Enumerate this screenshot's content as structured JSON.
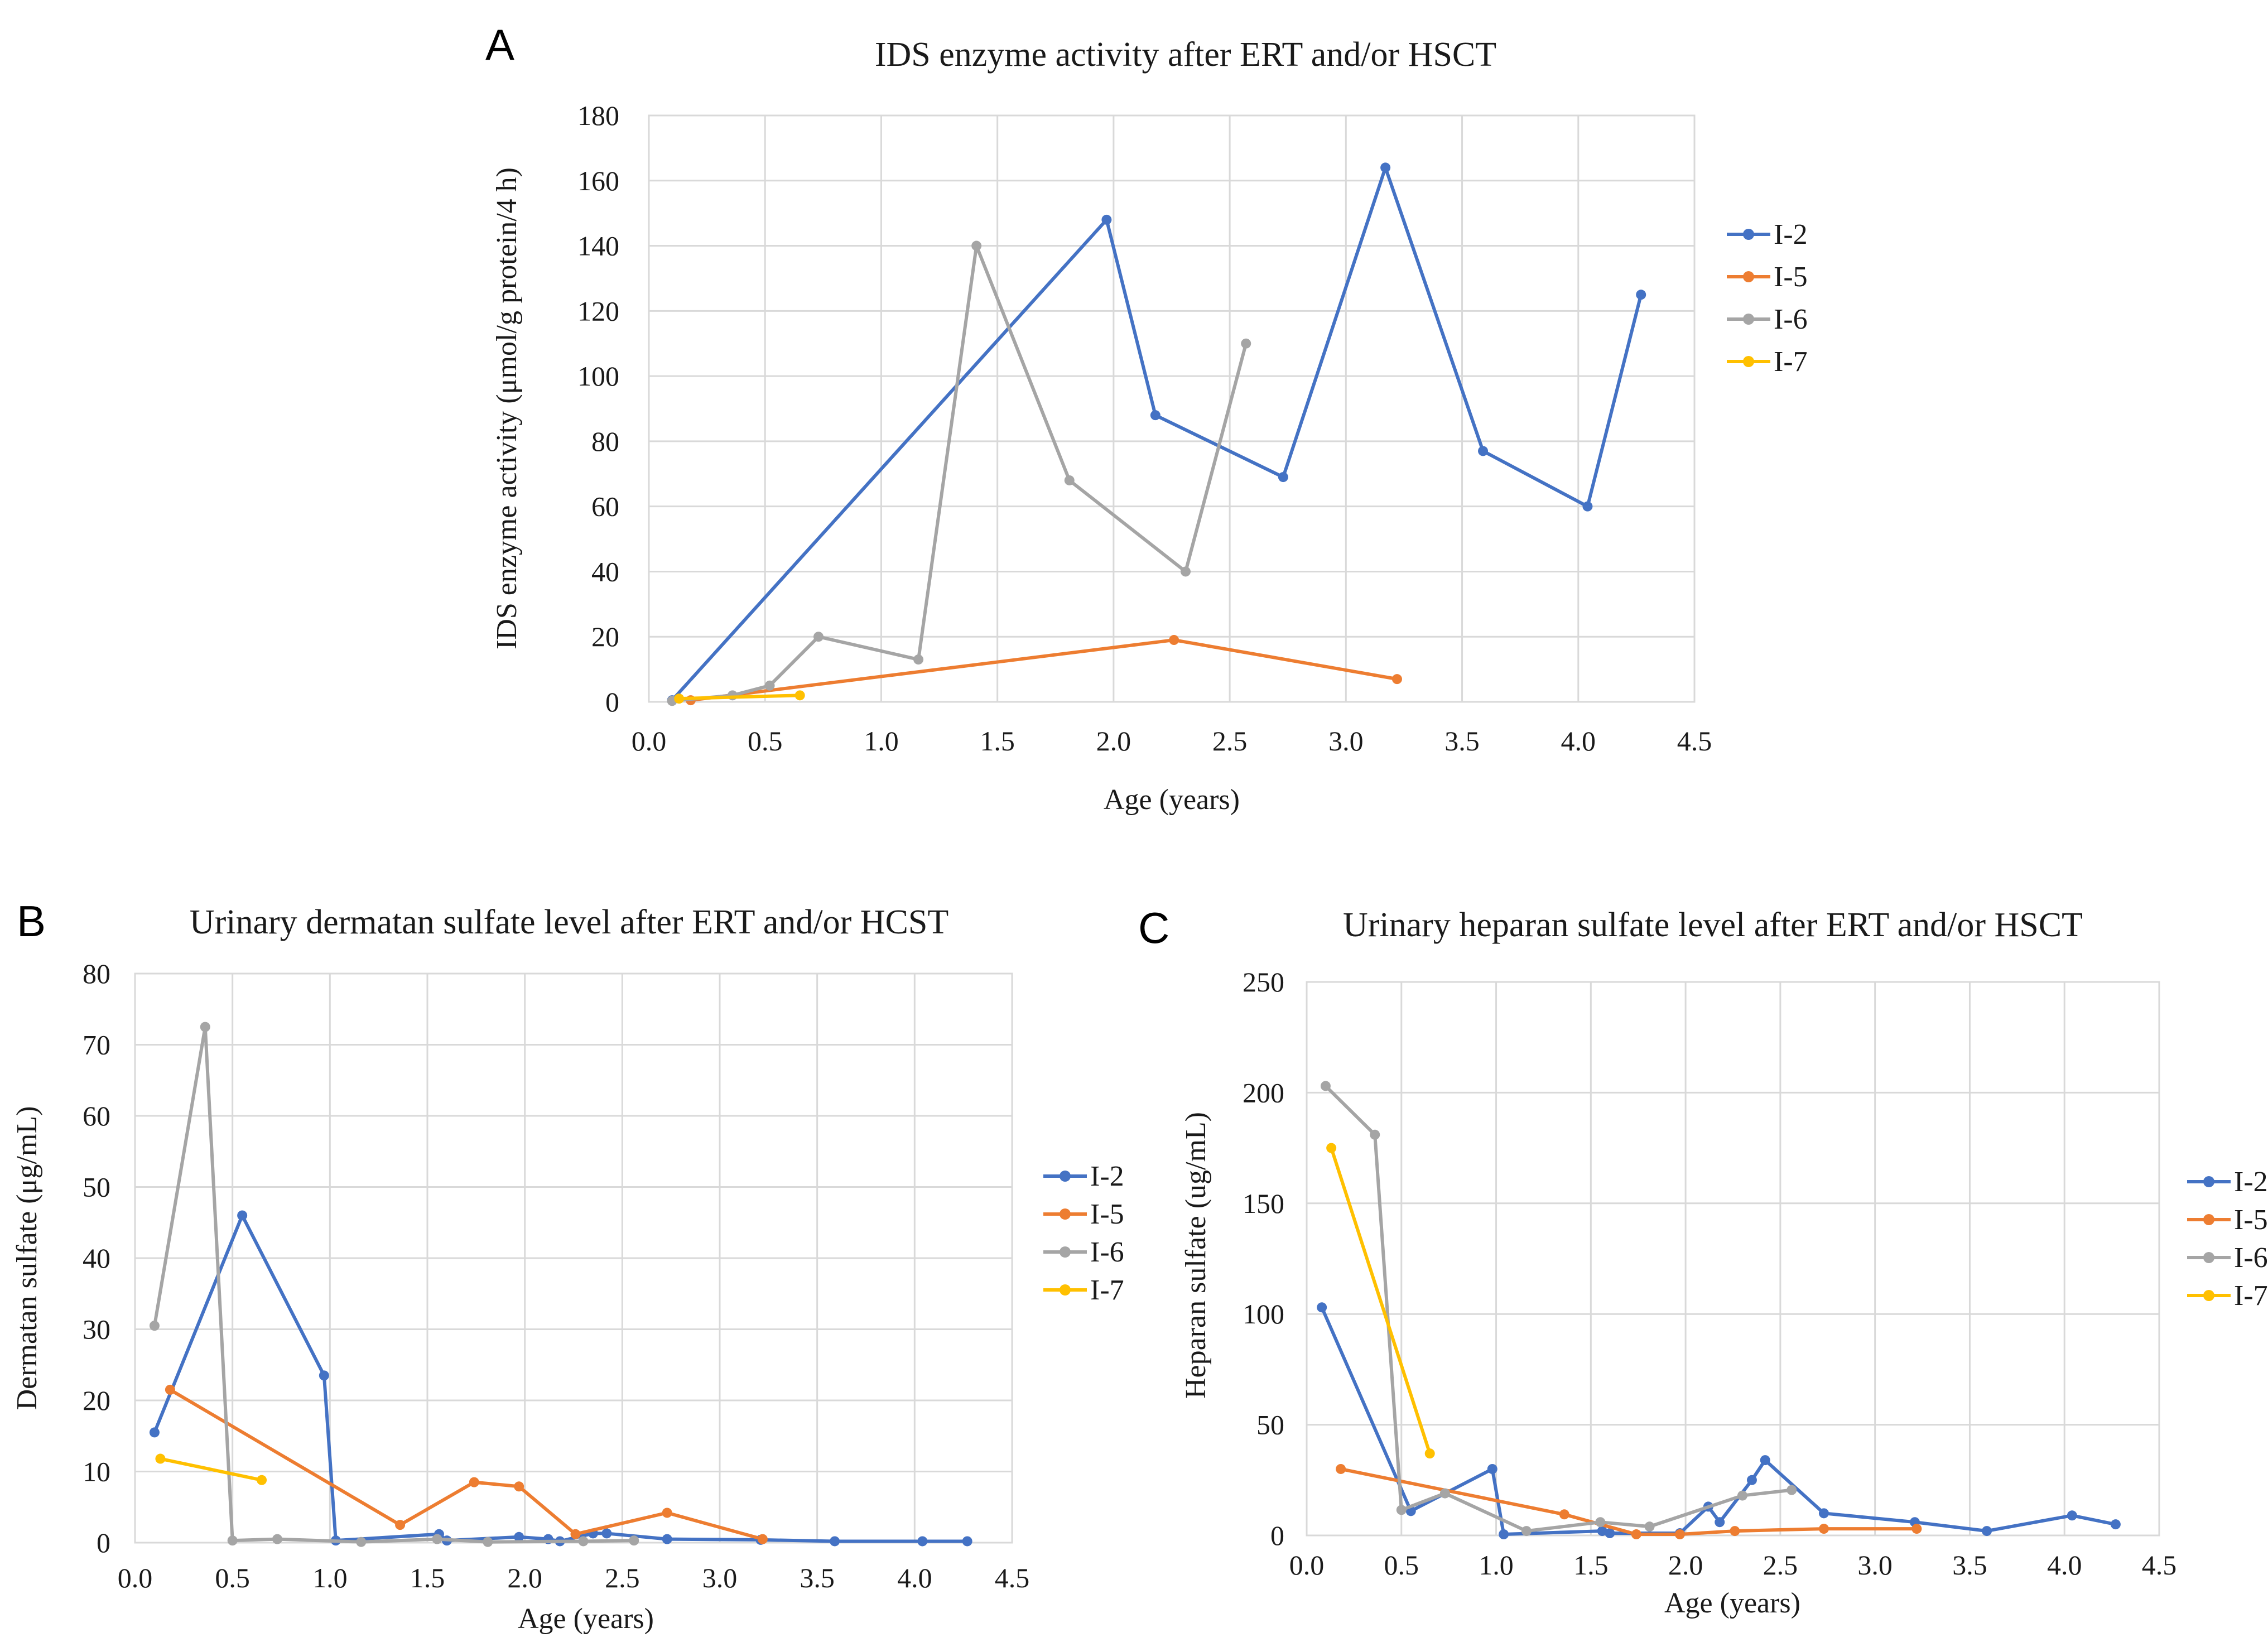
{
  "panels": [
    {
      "letter": "A",
      "chart_data": {
        "type": "line",
        "title": "IDS enzyme activity after ERT and/or HSCT",
        "xlabel": "Age (years)",
        "ylabel": "IDS enzyme activity (μmol/g protein/4 h)",
        "xlim": [
          0,
          4.5
        ],
        "ylim": [
          0,
          180
        ],
        "xticks": [
          0,
          0.5,
          1.0,
          1.5,
          2.0,
          2.5,
          3.0,
          3.5,
          4.0,
          4.5
        ],
        "xtick_labels": [
          "0.0",
          "0.5",
          "1.0",
          "1.5",
          "2.0",
          "2.5",
          "3.0",
          "3.5",
          "4.0",
          "4.5"
        ],
        "yticks": [
          0,
          20,
          40,
          60,
          80,
          100,
          120,
          140,
          160,
          180
        ],
        "ytick_labels": [
          "0",
          "20",
          "40",
          "60",
          "80",
          "100",
          "120",
          "140",
          "160",
          "180"
        ],
        "grid": true,
        "legend_position": "right",
        "series": [
          {
            "name": "I-2",
            "color": "#4472c4",
            "points": [
              [
                0.1,
                0.5
              ],
              [
                1.97,
                148
              ],
              [
                2.18,
                88
              ],
              [
                2.73,
                69
              ],
              [
                3.17,
                164
              ],
              [
                3.59,
                77
              ],
              [
                4.04,
                60
              ],
              [
                4.27,
                125
              ]
            ]
          },
          {
            "name": "I-5",
            "color": "#ed7d31",
            "points": [
              [
                0.18,
                0.5
              ],
              [
                2.26,
                19
              ],
              [
                3.22,
                7
              ]
            ]
          },
          {
            "name": "I-6",
            "color": "#a5a5a5",
            "points": [
              [
                0.1,
                0.3
              ],
              [
                0.36,
                2
              ],
              [
                0.52,
                5
              ],
              [
                0.73,
                20
              ],
              [
                1.16,
                13
              ],
              [
                1.41,
                140
              ],
              [
                1.81,
                68
              ],
              [
                2.31,
                40
              ],
              [
                2.57,
                110
              ]
            ]
          },
          {
            "name": "I-7",
            "color": "#ffc000",
            "points": [
              [
                0.13,
                1
              ],
              [
                0.65,
                2
              ]
            ]
          }
        ]
      }
    },
    {
      "letter": "B",
      "chart_data": {
        "type": "line",
        "title": "Urinary dermatan sulfate level after ERT and/or HCST",
        "xlabel": "Age (years)",
        "ylabel": "Dermatan sulfate (μg/mL)",
        "xlim": [
          0,
          4.5
        ],
        "ylim": [
          0,
          80
        ],
        "xticks": [
          0,
          0.5,
          1.0,
          1.5,
          2.0,
          2.5,
          3.0,
          3.5,
          4.0,
          4.5
        ],
        "xtick_labels": [
          "0.0",
          "0.5",
          "1.0",
          "1.5",
          "2.0",
          "2.5",
          "3.0",
          "3.5",
          "4.0",
          "4.5"
        ],
        "yticks": [
          0,
          10,
          20,
          30,
          40,
          50,
          60,
          70,
          80
        ],
        "ytick_labels": [
          "0",
          "10",
          "20",
          "30",
          "40",
          "50",
          "60",
          "70",
          "80"
        ],
        "grid": true,
        "legend_position": "right",
        "series": [
          {
            "name": "I-2",
            "color": "#4472c4",
            "points": [
              [
                0.1,
                15.5
              ],
              [
                0.55,
                46
              ],
              [
                0.97,
                23.5
              ],
              [
                1.03,
                0.3
              ],
              [
                1.56,
                1.2
              ],
              [
                1.6,
                0.3
              ],
              [
                1.97,
                0.8
              ],
              [
                2.12,
                0.5
              ],
              [
                2.18,
                0.2
              ],
              [
                2.35,
                1.3
              ],
              [
                2.42,
                1.3
              ],
              [
                2.73,
                0.5
              ],
              [
                3.21,
                0.4
              ],
              [
                3.59,
                0.2
              ],
              [
                4.04,
                0.2
              ],
              [
                4.27,
                0.2
              ]
            ]
          },
          {
            "name": "I-5",
            "color": "#ed7d31",
            "points": [
              [
                0.18,
                21.5
              ],
              [
                1.36,
                2.5
              ],
              [
                1.74,
                8.5
              ],
              [
                1.97,
                7.9
              ],
              [
                2.26,
                1.2
              ],
              [
                2.73,
                4.2
              ],
              [
                3.22,
                0.5
              ]
            ]
          },
          {
            "name": "I-6",
            "color": "#a5a5a5",
            "points": [
              [
                0.1,
                30.5
              ],
              [
                0.36,
                72.5
              ],
              [
                0.5,
                0.3
              ],
              [
                0.73,
                0.5
              ],
              [
                1.16,
                0.1
              ],
              [
                1.55,
                0.5
              ],
              [
                1.81,
                0.1
              ],
              [
                2.3,
                0.2
              ],
              [
                2.56,
                0.3
              ]
            ]
          },
          {
            "name": "I-7",
            "color": "#ffc000",
            "points": [
              [
                0.13,
                11.8
              ],
              [
                0.65,
                8.8
              ]
            ]
          }
        ]
      }
    },
    {
      "letter": "C",
      "chart_data": {
        "type": "line",
        "title": "Urinary heparan sulfate level after ERT and/or HSCT",
        "xlabel": "Age (years)",
        "ylabel": "Heparan sulfate (ug/mL)",
        "xlim": [
          0,
          4.5
        ],
        "ylim": [
          0,
          250
        ],
        "xticks": [
          0,
          0.5,
          1.0,
          1.5,
          2.0,
          2.5,
          3.0,
          3.5,
          4.0,
          4.5
        ],
        "xtick_labels": [
          "0.0",
          "0.5",
          "1.0",
          "1.5",
          "2.0",
          "2.5",
          "3.0",
          "3.5",
          "4.0",
          "4.5"
        ],
        "yticks": [
          0,
          50,
          100,
          150,
          200,
          250
        ],
        "ytick_labels": [
          "0",
          "50",
          "100",
          "150",
          "200",
          "250"
        ],
        "grid": true,
        "legend_position": "right",
        "series": [
          {
            "name": "I-2",
            "color": "#4472c4",
            "points": [
              [
                0.08,
                103
              ],
              [
                0.55,
                11
              ],
              [
                0.98,
                30
              ],
              [
                1.04,
                0.5
              ],
              [
                1.56,
                2
              ],
              [
                1.6,
                1
              ],
              [
                1.97,
                1
              ],
              [
                2.12,
                13
              ],
              [
                2.18,
                6
              ],
              [
                2.35,
                25
              ],
              [
                2.42,
                34
              ],
              [
                2.73,
                10
              ],
              [
                3.21,
                6
              ],
              [
                3.59,
                2
              ],
              [
                4.04,
                9
              ],
              [
                4.27,
                5
              ]
            ]
          },
          {
            "name": "I-5",
            "color": "#ed7d31",
            "points": [
              [
                0.18,
                30
              ],
              [
                1.36,
                9.5
              ],
              [
                1.74,
                0.5
              ],
              [
                1.97,
                0.5
              ],
              [
                2.26,
                2
              ],
              [
                2.73,
                3
              ],
              [
                3.22,
                3
              ]
            ]
          },
          {
            "name": "I-6",
            "color": "#a5a5a5",
            "points": [
              [
                0.1,
                203
              ],
              [
                0.36,
                181
              ],
              [
                0.5,
                11.5
              ],
              [
                0.73,
                19
              ],
              [
                1.16,
                2
              ],
              [
                1.55,
                6
              ],
              [
                1.81,
                4
              ],
              [
                2.3,
                18
              ],
              [
                2.56,
                20.5
              ]
            ]
          },
          {
            "name": "I-7",
            "color": "#ffc000",
            "points": [
              [
                0.13,
                175
              ],
              [
                0.65,
                37
              ]
            ]
          }
        ]
      }
    }
  ]
}
